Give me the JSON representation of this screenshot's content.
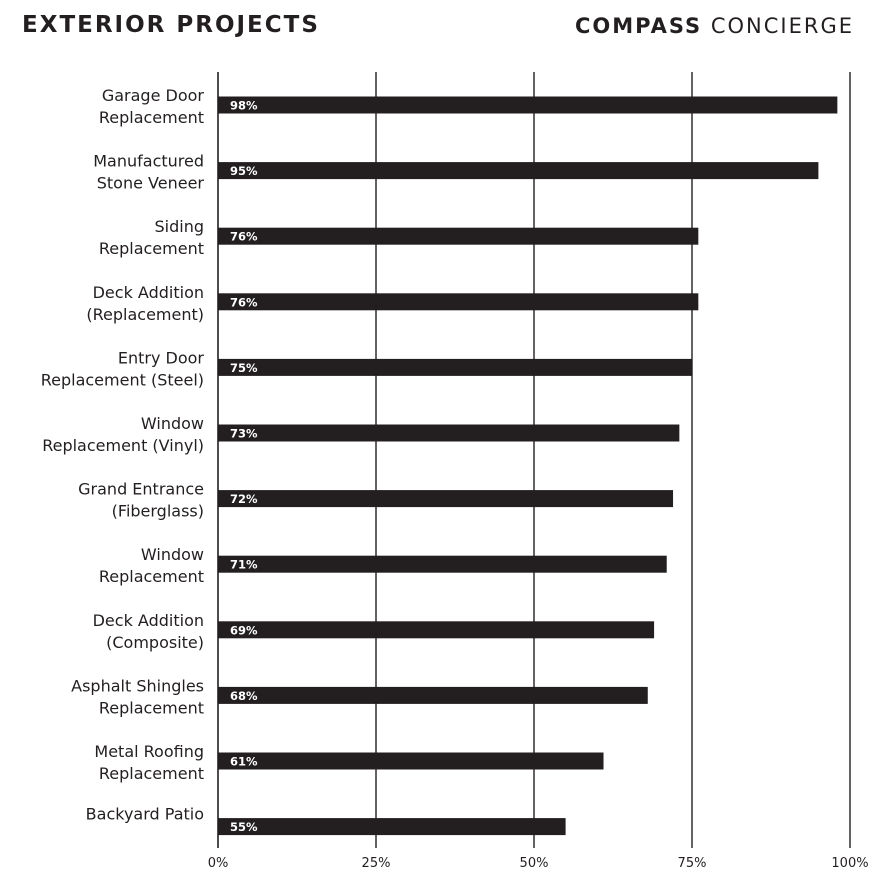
{
  "header": {
    "title": "EXTERIOR PROJECTS",
    "brand_strong": "COMPASS",
    "brand_light": "CONCIERGE"
  },
  "colors": {
    "bar": "#231f20",
    "grid": "#231f20",
    "value_text": "#ffffff",
    "background": "#ffffff"
  },
  "chart_data": {
    "type": "bar",
    "orientation": "horizontal",
    "title": "EXTERIOR PROJECTS",
    "categories": [
      [
        "Garage Door",
        "Replacement"
      ],
      [
        "Manufactured",
        "Stone Veneer"
      ],
      [
        "Siding",
        "Replacement"
      ],
      [
        "Deck Addition",
        "(Replacement)"
      ],
      [
        "Entry Door",
        "Replacement (Steel)"
      ],
      [
        "Window",
        "Replacement (Vinyl)"
      ],
      [
        "Grand Entrance",
        "(Fiberglass)"
      ],
      [
        "Window",
        "Replacement"
      ],
      [
        "Deck Addition",
        "(Composite)"
      ],
      [
        "Asphalt Shingles",
        "Replacement"
      ],
      [
        "Metal Roofing",
        "Replacement"
      ],
      [
        "Backyard Patio"
      ]
    ],
    "values": [
      98,
      95,
      76,
      76,
      75,
      73,
      72,
      71,
      69,
      68,
      61,
      55
    ],
    "value_labels": [
      "98%",
      "95%",
      "76%",
      "76%",
      "75%",
      "73%",
      "72%",
      "71%",
      "69%",
      "68%",
      "61%",
      "55%"
    ],
    "x_ticks": [
      0,
      25,
      50,
      75,
      100
    ],
    "x_tick_labels": [
      "0%",
      "25%",
      "50%",
      "75%",
      "100%"
    ],
    "xlim": [
      0,
      100
    ],
    "grid": true,
    "legend": false
  }
}
